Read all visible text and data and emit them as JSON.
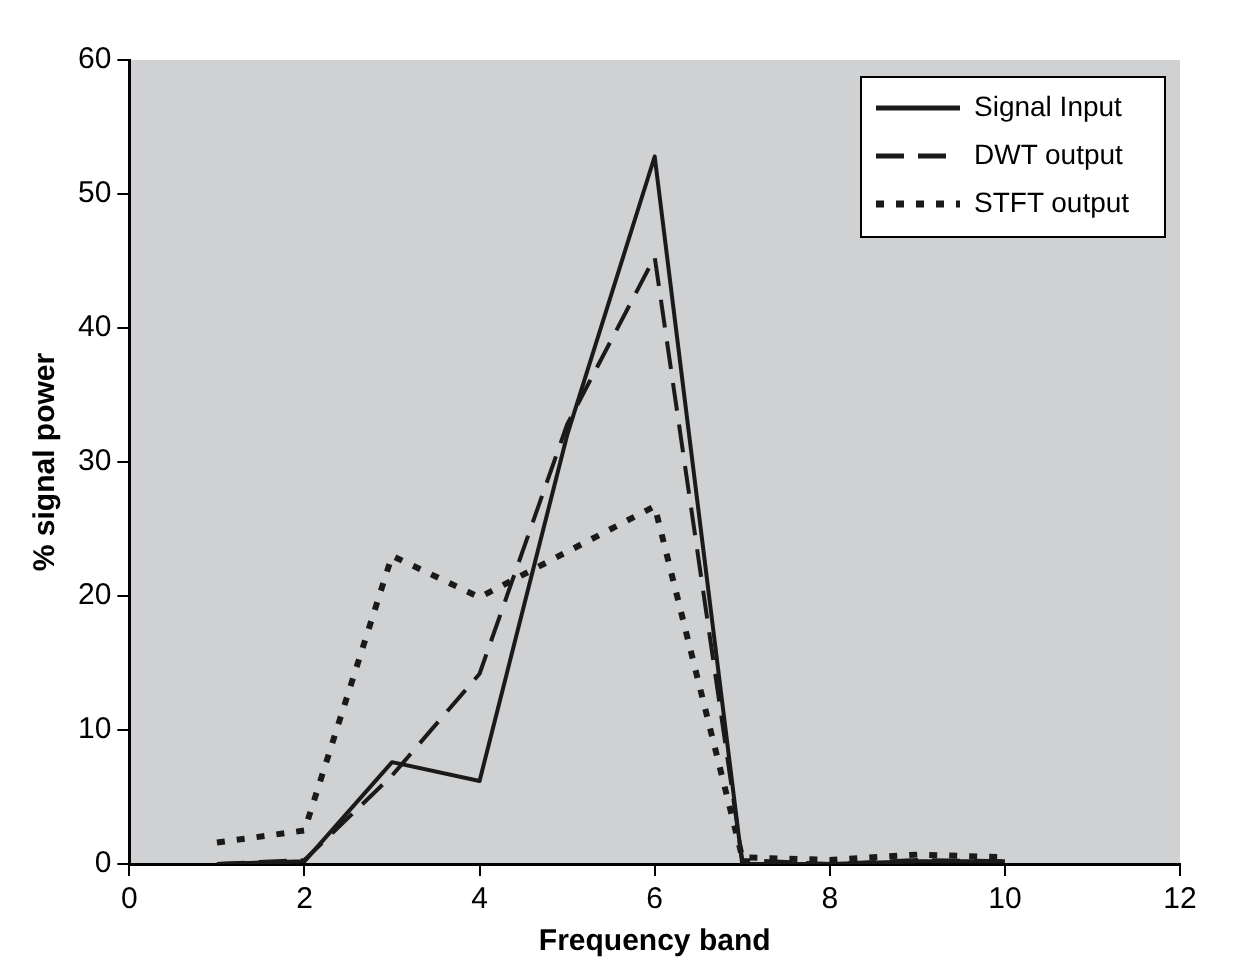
{
  "chart_data": {
    "type": "line",
    "xlabel": "Frequency band",
    "ylabel": "% signal power",
    "x": [
      1,
      2,
      3,
      4,
      5,
      6,
      7,
      8,
      9,
      10
    ],
    "series": [
      {
        "name": "Signal Input",
        "color": "#1a1a1a",
        "line_style": "solid",
        "values": [
          0,
          0.2,
          7.6,
          6.2,
          32,
          52.8,
          0,
          0,
          0.2,
          0.2
        ]
      },
      {
        "name": "DWT output",
        "color": "#1a1a1a",
        "line_style": "dashed",
        "values": [
          0,
          0.3,
          6.6,
          14.2,
          32.8,
          45.3,
          0.3,
          0,
          0.3,
          0.2
        ]
      },
      {
        "name": "STFT output",
        "color": "#1a1a1a",
        "line_style": "dotted",
        "values": [
          1.6,
          2.5,
          23,
          19.9,
          23.3,
          26.7,
          0.5,
          0.3,
          0.7,
          0.5
        ]
      }
    ],
    "xlim": [
      0,
      12
    ],
    "xticks": [
      0,
      2,
      4,
      6,
      8,
      10,
      12
    ],
    "ylim": [
      0,
      60
    ],
    "yticks": [
      0,
      10,
      20,
      30,
      40,
      50,
      60
    ],
    "grid": false,
    "legend": "top right",
    "marker": "none"
  }
}
